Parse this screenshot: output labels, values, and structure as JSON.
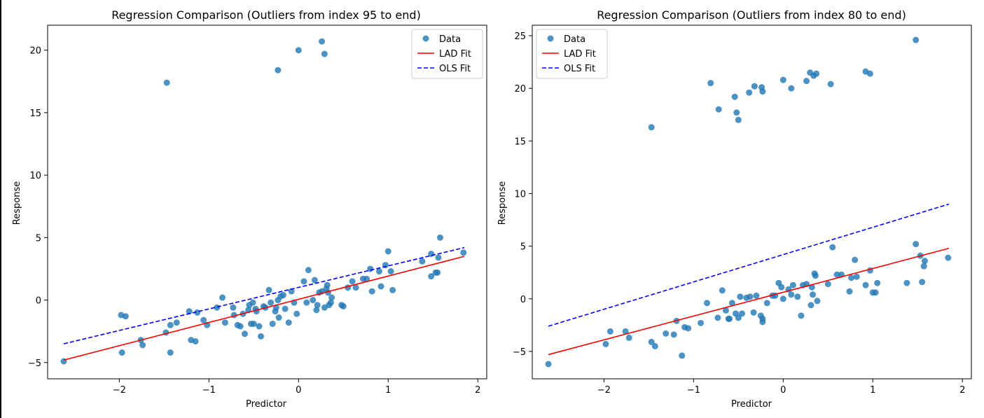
{
  "chart_data": [
    {
      "type": "scatter",
      "title": "Regression Comparison (Outliers from index 95 to end)",
      "xlabel": "Predictor",
      "ylabel": "Response",
      "xlim": [
        -2.8,
        2.1
      ],
      "ylim": [
        -6.3,
        22.0
      ],
      "xticks": [
        -2,
        -1,
        0,
        1,
        2
      ],
      "xtick_labels": [
        "−2",
        "−1",
        "0",
        "1",
        "2"
      ],
      "yticks": [
        -5,
        0,
        5,
        10,
        15,
        20
      ],
      "ytick_labels": [
        "−5",
        "0",
        "5",
        "10",
        "15",
        "20"
      ],
      "grid": false,
      "legend_position": "top-right",
      "legend": [
        "Data",
        "LAD Fit",
        "OLS Fit"
      ],
      "points_color": "#1f77b4",
      "lad_color": "#ff0000",
      "ols_color": "#0000ff",
      "series": [
        {
          "name": "Data",
          "x": [
            -2.62,
            -1.98,
            -1.93,
            -1.97,
            -1.76,
            -1.74,
            -1.48,
            -1.43,
            -1.43,
            -1.36,
            -1.22,
            -1.2,
            -1.15,
            -1.13,
            -1.06,
            -1.02,
            -0.91,
            -0.85,
            -0.82,
            -0.73,
            -0.72,
            -0.68,
            -0.65,
            -0.62,
            -0.6,
            -0.56,
            -0.55,
            -0.53,
            -0.51,
            -0.5,
            -0.48,
            -0.47,
            -0.44,
            -0.42,
            -0.39,
            -0.37,
            -0.33,
            -0.31,
            -0.29,
            -0.26,
            -0.25,
            -0.23,
            -0.22,
            -0.2,
            -0.17,
            -0.15,
            -0.11,
            -0.08,
            -0.05,
            -0.02,
            0.06,
            0.09,
            0.11,
            0.16,
            0.18,
            0.2,
            0.21,
            0.23,
            0.26,
            0.29,
            0.31,
            0.32,
            0.33,
            0.34,
            0.36,
            0.37,
            0.48,
            0.5,
            0.55,
            0.6,
            0.64,
            0.72,
            0.76,
            0.8,
            0.82,
            0.9,
            0.92,
            0.97,
            1.0,
            1.03,
            1.05,
            1.38,
            1.48,
            1.48,
            1.53,
            1.55,
            1.56,
            1.58,
            1.84,
            -1.47,
            -0.23,
            0.0,
            0.26,
            0.29
          ],
          "y": [
            -4.9,
            -1.2,
            -1.3,
            -4.2,
            -3.2,
            -3.6,
            -2.6,
            -2.0,
            -4.2,
            -1.8,
            -0.9,
            -3.2,
            -3.3,
            -1.0,
            -1.6,
            -2.0,
            -0.6,
            0.2,
            -1.8,
            -0.6,
            -1.2,
            -2.0,
            -2.1,
            -1.1,
            -2.7,
            -0.8,
            -0.4,
            -1.9,
            -0.2,
            -1.9,
            -0.7,
            -0.9,
            -2.1,
            -2.9,
            -0.5,
            -0.6,
            0.8,
            -0.2,
            -1.9,
            -0.9,
            -0.6,
            0.0,
            -1.4,
            0.3,
            0.4,
            -0.7,
            -1.8,
            0.7,
            -0.2,
            -1.1,
            1.5,
            -0.2,
            2.4,
            0.0,
            1.6,
            -0.8,
            -0.4,
            0.6,
            0.7,
            -0.6,
            0.9,
            1.2,
            0.6,
            -0.4,
            -0.2,
            0.2,
            -0.4,
            -0.5,
            1.0,
            1.5,
            1.0,
            1.7,
            1.7,
            2.5,
            0.7,
            2.3,
            1.1,
            2.8,
            3.9,
            2.3,
            0.8,
            3.1,
            3.7,
            1.9,
            2.2,
            2.2,
            3.4,
            5.0,
            3.8,
            17.4,
            18.4,
            20.0,
            20.7,
            19.7
          ]
        },
        {
          "name": "LAD Fit",
          "x": [
            -2.62,
            1.85
          ],
          "y": [
            -4.8,
            3.5
          ]
        },
        {
          "name": "OLS Fit",
          "x": [
            -2.62,
            1.85
          ],
          "y": [
            -3.5,
            4.2
          ]
        }
      ]
    },
    {
      "type": "scatter",
      "title": "Regression Comparison (Outliers from index 80 to end)",
      "xlabel": "Predictor",
      "ylabel": "Response",
      "xlim": [
        -2.8,
        2.1
      ],
      "ylim": [
        -7.6,
        26.0
      ],
      "xticks": [
        -2,
        -1,
        0,
        1,
        2
      ],
      "xtick_labels": [
        "−2",
        "−1",
        "0",
        "1",
        "2"
      ],
      "yticks": [
        -5,
        0,
        5,
        10,
        15,
        20,
        25
      ],
      "ytick_labels": [
        "−5",
        "0",
        "5",
        "10",
        "15",
        "20",
        "25"
      ],
      "grid": false,
      "legend_position": "top-left",
      "legend": [
        "Data",
        "LAD Fit",
        "OLS Fit"
      ],
      "points_color": "#1f77b4",
      "lad_color": "#ff0000",
      "ols_color": "#0000ff",
      "series": [
        {
          "name": "Data",
          "x": [
            -2.62,
            -1.98,
            -1.93,
            -1.76,
            -1.72,
            -1.47,
            -1.43,
            -1.31,
            -1.22,
            -1.19,
            -1.13,
            -1.1,
            -1.06,
            -0.92,
            -0.85,
            -0.73,
            -0.68,
            -0.64,
            -0.61,
            -0.6,
            -0.57,
            -0.53,
            -0.5,
            -0.48,
            -0.46,
            -0.41,
            -0.37,
            -0.33,
            -0.3,
            -0.25,
            -0.23,
            -0.23,
            -0.18,
            -0.12,
            -0.09,
            -0.05,
            -0.02,
            0.0,
            0.06,
            0.09,
            0.11,
            0.16,
            0.2,
            0.22,
            0.26,
            0.31,
            0.32,
            0.33,
            0.35,
            0.36,
            0.38,
            0.5,
            0.55,
            0.6,
            0.65,
            0.74,
            0.76,
            0.8,
            0.82,
            0.92,
            0.97,
            1.0,
            1.03,
            1.05,
            1.38,
            1.48,
            1.53,
            1.55,
            1.57,
            1.58,
            1.84,
            -1.47,
            -0.81,
            -0.72,
            -0.54,
            -0.52,
            -0.5,
            -0.38,
            -0.32,
            -0.24,
            -0.23,
            0.0,
            0.09,
            0.26,
            0.3,
            0.34,
            0.37,
            0.53,
            0.92,
            0.97,
            1.48
          ],
          "y": [
            -6.2,
            -4.3,
            -3.1,
            -3.1,
            -3.7,
            -4.1,
            -4.5,
            -3.3,
            -3.4,
            -2.1,
            -5.4,
            -2.7,
            -2.8,
            -2.3,
            -0.4,
            -1.8,
            0.8,
            -1.1,
            -1.9,
            -1.9,
            -0.4,
            -1.4,
            -1.8,
            0.2,
            -1.4,
            0.1,
            0.2,
            -1.3,
            0.3,
            -1.6,
            -1.9,
            -2.2,
            -0.4,
            0.3,
            0.3,
            1.5,
            1.1,
            0.0,
            0.9,
            0.4,
            1.3,
            0.2,
            -1.6,
            1.3,
            1.4,
            -0.6,
            1.1,
            0.4,
            2.4,
            2.2,
            -0.2,
            1.4,
            4.9,
            2.3,
            2.3,
            0.7,
            2.0,
            3.7,
            2.1,
            1.3,
            2.7,
            0.6,
            0.6,
            1.5,
            1.5,
            5.2,
            4.1,
            1.6,
            3.1,
            3.6,
            3.9,
            16.3,
            20.5,
            18.0,
            19.2,
            17.7,
            17.0,
            19.6,
            20.2,
            20.1,
            19.7,
            20.8,
            20.0,
            20.7,
            21.5,
            21.2,
            21.4,
            20.4,
            21.6,
            21.4,
            24.6
          ]
        },
        {
          "name": "LAD Fit",
          "x": [
            -2.62,
            1.85
          ],
          "y": [
            -5.3,
            4.8
          ]
        },
        {
          "name": "OLS Fit",
          "x": [
            -2.62,
            1.85
          ],
          "y": [
            -2.6,
            9.0
          ]
        }
      ]
    }
  ]
}
